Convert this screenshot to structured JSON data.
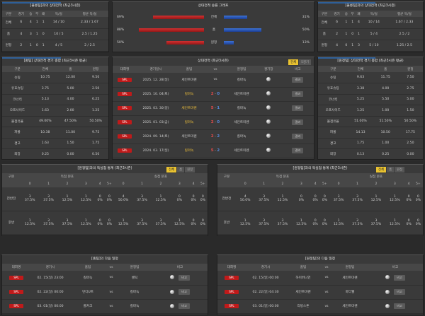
{
  "records": {
    "title_left": "[울릉팀]과의 상대전적 (최근3시즌)",
    "title_right": "[울릉팀]과의 상대전적 (최근3시즌)",
    "columns": [
      "구분",
      "경기",
      "승",
      "무",
      "패",
      "득/실",
      "평균 득/실"
    ],
    "left_rows": [
      [
        "전체",
        "6",
        "4",
        "1",
        "1",
        "14 / 10",
        "2.33 / 1.67"
      ],
      [
        "홈",
        "4",
        "3",
        "1",
        "0",
        "10 / 5",
        "2.5 / 1.25"
      ],
      [
        "원정",
        "2",
        "1",
        "0",
        "1",
        "4 / 5",
        "2 / 2.5"
      ]
    ],
    "right_rows": [
      [
        "전체",
        "6",
        "1",
        "1",
        "4",
        "10 / 14",
        "1.67 / 2.33"
      ],
      [
        "홈",
        "2",
        "1",
        "0",
        "1",
        "5 / 4",
        "2.5 / 2"
      ],
      [
        "원정",
        "4",
        "0",
        "1",
        "3",
        "5 / 10",
        "1.25 / 2.5"
      ]
    ]
  },
  "winrate": {
    "title": "상대전적 승률 그래프",
    "rows": [
      {
        "label": "전체",
        "left": "69%",
        "right": "31%",
        "left_pct": 0.69,
        "right_pct": 0.31
      },
      {
        "label": "홈",
        "left": "88%",
        "right": "50%",
        "left_pct": 0.88,
        "right_pct": 0.5
      },
      {
        "label": "원정",
        "left": "50%",
        "right": "13%",
        "left_pct": 0.5,
        "right_pct": 0.13
      }
    ]
  },
  "stats": {
    "title_left": "[홈팀] 상대전적 경기 종합 (최근3시즌 평균)",
    "title_right": "[원정팀] 상대전적 경기 종합 (최근3시즌 평균)",
    "columns": [
      "구분",
      "전체",
      "홈",
      "원정"
    ],
    "left_rows": [
      [
        "슈팅",
        "10.75",
        "12.00",
        "9.50"
      ],
      [
        "유효슈팅",
        "3.75",
        "5.00",
        "2.50"
      ],
      [
        "코너킥",
        "5.13",
        "4.00",
        "6.25"
      ],
      [
        "오프사이드",
        "1.63",
        "2.00",
        "1.25"
      ],
      [
        "볼점유율",
        "49.00%",
        "47.50%",
        "50.50%"
      ],
      [
        "파울",
        "10.38",
        "11.00",
        "9.75"
      ],
      [
        "경고",
        "1.63",
        "1.50",
        "1.75"
      ],
      [
        "퇴장",
        "0.25",
        "0.00",
        "0.50"
      ]
    ],
    "right_rows": [
      [
        "슈팅",
        "9.63",
        "11.75",
        "7.50"
      ],
      [
        "유효슈팅",
        "3.38",
        "4.00",
        "2.75"
      ],
      [
        "코너킥",
        "5.25",
        "5.50",
        "5.00"
      ],
      [
        "오프사이드",
        "1.25",
        "1.00",
        "1.50"
      ],
      [
        "볼점유율",
        "51.00%",
        "51.50%",
        "50.50%"
      ],
      [
        "파울",
        "14.13",
        "10.50",
        "17.75"
      ],
      [
        "경고",
        "1.75",
        "1.00",
        "2.50"
      ],
      [
        "퇴장",
        "0.13",
        "0.25",
        "0.00"
      ]
    ]
  },
  "matches": {
    "title": "상대전적 (최근3시즌)",
    "tab_all": "전체",
    "tab_home": "5경기",
    "columns": [
      "대회명",
      "경기일시",
      "홈팀",
      "vs",
      "원정팀",
      "경기장",
      "비고"
    ],
    "rows": [
      {
        "league": "SPL",
        "date": "2025. 12. 28(일)",
        "home": "세인트미렌",
        "hs": "",
        "as": "",
        "away": "킬마녹",
        "home_hl": false,
        "away_hl": false
      },
      {
        "league": "SPL",
        "date": "2025. 10. 04(토)",
        "home": "킬마녹",
        "hs": "2",
        "as": "0",
        "away": "세인트미렌",
        "home_hl": true,
        "away_hl": false
      },
      {
        "league": "SPL",
        "date": "2025. 03. 30(일)",
        "home": "세인트미렌",
        "hs": "5",
        "as": "1",
        "away": "킬마녹",
        "home_hl": true,
        "away_hl": false
      },
      {
        "league": "SPL",
        "date": "2025. 01. 03(금)",
        "home": "킬마녹",
        "hs": "2",
        "as": "0",
        "away": "세인트미렌",
        "home_hl": true,
        "away_hl": false
      },
      {
        "league": "SPL",
        "date": "2024. 09. 14(토)",
        "home": "세인트미렌",
        "hs": "2",
        "as": "2",
        "away": "킬마녹",
        "home_hl": false,
        "away_hl": false
      },
      {
        "league": "SPL",
        "date": "2024. 03. 17(일)",
        "home": "킬마녹",
        "hs": "5",
        "as": "2",
        "away": "세인트미렌",
        "home_hl": true,
        "away_hl": false
      }
    ],
    "result_label": "결과"
  },
  "dist": {
    "title_left": "[원정팀]과의 득실점 통계 (최근3시즌)",
    "title_right": "[원정팀]과의 득실점 통계 (최근3시즌)",
    "tabs": [
      "전체",
      "홈",
      "원정"
    ],
    "group_goal": "득점 분포",
    "group_conc": "실점 분포",
    "row_label_col": "구분",
    "bins": [
      "0",
      "1",
      "2",
      "3",
      "4",
      "5+"
    ],
    "row_labels": [
      "전반전",
      "후반"
    ],
    "left": [
      {
        "goal": [
          [
            "3",
            "37.5%"
          ],
          [
            "3",
            "37.5%"
          ],
          [
            "1",
            "12.5%"
          ],
          [
            "1",
            "12.5%"
          ],
          [
            "0",
            "0%"
          ],
          [
            "0",
            "0%"
          ]
        ],
        "conc": [
          [
            "4",
            "50.0%"
          ],
          [
            "3",
            "37.5%"
          ],
          [
            "1",
            "12.5%"
          ],
          [
            "0",
            "0%"
          ],
          [
            "0",
            "0%"
          ],
          [
            "0",
            "0%"
          ]
        ]
      },
      {
        "goal": [
          [
            "1",
            "12.5%"
          ],
          [
            "3",
            "37.5%"
          ],
          [
            "3",
            "37.5%"
          ],
          [
            "1",
            "12.5%"
          ],
          [
            "0",
            "0%"
          ],
          [
            "0",
            "0%"
          ]
        ],
        "conc": [
          [
            "1",
            "12.5%"
          ],
          [
            "3",
            "37.5%"
          ],
          [
            "3",
            "37.5%"
          ],
          [
            "1",
            "12.5%"
          ],
          [
            "0",
            "0%"
          ],
          [
            "0",
            "0%"
          ]
        ]
      }
    ],
    "right": [
      {
        "goal": [
          [
            "4",
            "50.0%"
          ],
          [
            "3",
            "37.5%"
          ],
          [
            "1",
            "12.5%"
          ],
          [
            "0",
            "0%"
          ],
          [
            "0",
            "0%"
          ],
          [
            "0",
            "0%"
          ]
        ],
        "conc": [
          [
            "3",
            "37.5%"
          ],
          [
            "3",
            "37.5%"
          ],
          [
            "1",
            "12.5%"
          ],
          [
            "1",
            "12.5%"
          ],
          [
            "0",
            "0%"
          ],
          [
            "0",
            "0%"
          ]
        ]
      },
      {
        "goal": [
          [
            "1",
            "12.5%"
          ],
          [
            "3",
            "37.5%"
          ],
          [
            "3",
            "37.5%"
          ],
          [
            "1",
            "12.5%"
          ],
          [
            "0",
            "0%"
          ],
          [
            "0",
            "0%"
          ]
        ],
        "conc": [
          [
            "1",
            "12.5%"
          ],
          [
            "3",
            "37.5%"
          ],
          [
            "3",
            "37.5%"
          ],
          [
            "1",
            "12.5%"
          ],
          [
            "0",
            "0%"
          ],
          [
            "0",
            "0%"
          ]
        ]
      }
    ]
  },
  "next": {
    "title_left": "[홈팀]의 다음 일정",
    "title_right": "[원정팀]의 다음 일정",
    "columns": [
      "대회명",
      "경기시",
      "홈팀",
      "vs",
      "원정팀",
      "비고"
    ],
    "left_rows": [
      {
        "league": "SPL",
        "date": "02. 15(일) 23:00",
        "home": "킬마녹",
        "away": "셀틱"
      },
      {
        "league": "SPL",
        "date": "02. 22(일) 00:00",
        "home": "던디U트",
        "away": "킬마녹"
      },
      {
        "league": "SPL",
        "date": "03. 01(일) 00:00",
        "home": "폴커크",
        "away": "킬마녹"
      }
    ],
    "right_rows": [
      {
        "league": "SPL",
        "date": "02. 15(일) 00:00",
        "home": "하이버니언",
        "away": "세인트미렌"
      },
      {
        "league": "SPL",
        "date": "02. 22(일) 04:30",
        "home": "세인트미렌",
        "away": "마더웰"
      },
      {
        "league": "SPL",
        "date": "03. 01(일) 00:00",
        "home": "리빙스톤",
        "away": "세인트미렌"
      }
    ],
    "vs": "vs",
    "result_label": "비고"
  }
}
